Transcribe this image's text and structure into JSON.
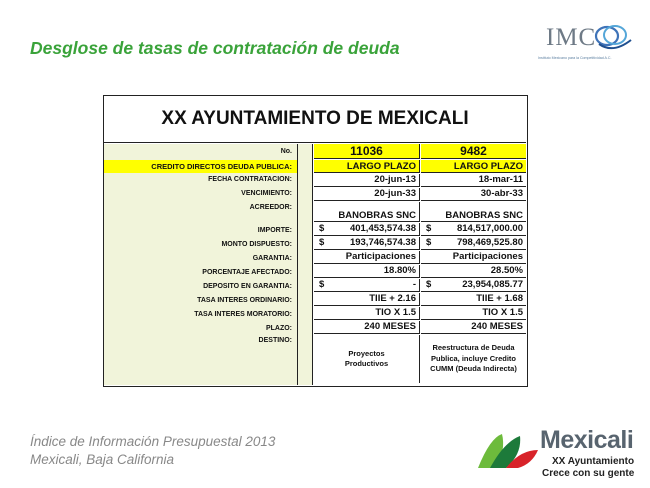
{
  "header": {
    "title": "Desglose de tasas de contratación de deuda",
    "logo_text": "IMC",
    "logo_subtitle": "Instituto Mexicano para la Competitividad A.C."
  },
  "table": {
    "title": "XX AYUNTAMIENTO DE MEXICALI",
    "number_label": "No.",
    "numbers": [
      "11036",
      "9482"
    ],
    "section_label": "CREDITO DIRECTOS DEUDA PUBLICA:",
    "term": [
      "LARGO PLAZO",
      "LARGO PLAZO"
    ],
    "rows": [
      {
        "label": "FECHA CONTRATACION:",
        "v1": "20-jun-13",
        "v2": "18-mar-11"
      },
      {
        "label": "VENCIMIENTO:",
        "v1": "20-jun-33",
        "v2": "30-abr-33"
      },
      {
        "label": "ACREEDOR:",
        "v1": "BANOBRAS SNC",
        "v2": "BANOBRAS SNC"
      },
      {
        "label": "IMPORTE:",
        "s1": "$",
        "v1": "401,453,574.38",
        "s2": "$",
        "v2": "814,517,000.00"
      },
      {
        "label": "MONTO DISPUESTO:",
        "s1": "$",
        "v1": "193,746,574.38",
        "s2": "$",
        "v2": "798,469,525.80"
      },
      {
        "label": "GARANTIA:",
        "v1": "Participaciones",
        "v2": "Participaciones"
      },
      {
        "label": "PORCENTAJE AFECTADO:",
        "v1": "18.80%",
        "v2": "28.50%"
      },
      {
        "label": "DEPOSITO EN GARANTIA:",
        "s1": "$",
        "v1": "-",
        "s2": "$",
        "v2": "23,954,085.77"
      },
      {
        "label": "TASA INTERES ORDINARIO:",
        "v1": "TIIE + 2.16",
        "v2": "TIIE + 1.68"
      },
      {
        "label": "TASA INTERES MORATORIO:",
        "v1": "TIO X 1.5",
        "v2": "TIO X 1.5"
      },
      {
        "label": "PLAZO:",
        "v1": "240 MESES",
        "v2": "240 MESES"
      }
    ],
    "destino_label": "DESTINO:",
    "destino": [
      "Proyectos Productivos",
      "Reestructura de Deuda Publica, incluye Credito CUMM (Deuda Indirecta)"
    ]
  },
  "footer": {
    "line1": "Índice de Información Presupuestal 2013",
    "line2": "Mexicali, Baja California"
  },
  "brand": {
    "name": "Mexicali",
    "line1": "XX Ayuntamiento",
    "line2": "Crece con su gente",
    "colors": {
      "green": "#3aa33a",
      "dark_green": "#1d7a3a",
      "red": "#d8232a",
      "gray": "#58646f"
    }
  }
}
